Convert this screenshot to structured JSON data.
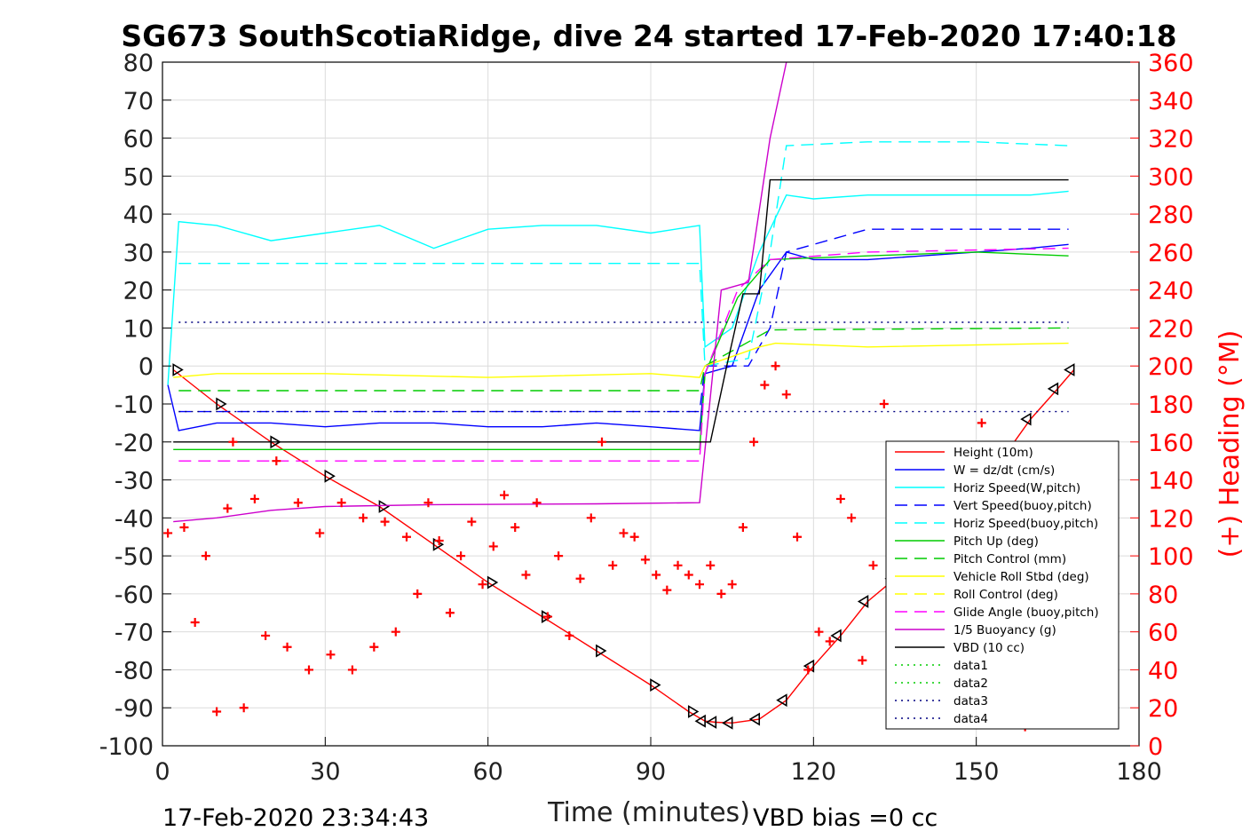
{
  "chart_data": {
    "type": "line",
    "title": "SG673 SouthScotiaRidge, dive 24 started 17-Feb-2020 17:40:18",
    "xlabel": "Time (minutes)",
    "ylabel_right": "(+) Heading (°M)",
    "footer_left": "17-Feb-2020 23:34:43",
    "footer_right": "VBD bias =0 cc",
    "xlim": [
      0,
      180
    ],
    "ylim_left": [
      -100,
      80
    ],
    "ylim_right": [
      0,
      360
    ],
    "x_ticks": [
      0,
      30,
      60,
      90,
      120,
      150,
      180
    ],
    "y_ticks_left": [
      -100,
      -90,
      -80,
      -70,
      -60,
      -50,
      -40,
      -30,
      -20,
      -10,
      0,
      10,
      20,
      30,
      40,
      50,
      60,
      70,
      80
    ],
    "y_ticks_right": [
      0,
      20,
      40,
      60,
      80,
      100,
      120,
      140,
      160,
      180,
      200,
      220,
      240,
      260,
      280,
      300,
      320,
      340,
      360
    ],
    "grid": true,
    "legend_position": "lower-right",
    "legend": [
      {
        "label": "Height (10m)",
        "color": "#ff0000",
        "dash": "solid"
      },
      {
        "label": "W = dz/dt (cm/s)",
        "color": "#0000ff",
        "dash": "solid"
      },
      {
        "label": "Horiz Speed(W,pitch)",
        "color": "#00ffff",
        "dash": "solid"
      },
      {
        "label": "Vert Speed(buoy,pitch)",
        "color": "#0000ff",
        "dash": "dashed"
      },
      {
        "label": "Horiz Speed(buoy,pitch)",
        "color": "#00ffff",
        "dash": "dashed"
      },
      {
        "label": "Pitch Up (deg)",
        "color": "#00cc00",
        "dash": "solid"
      },
      {
        "label": "Pitch Control (mm)",
        "color": "#00cc00",
        "dash": "dashed"
      },
      {
        "label": "Vehicle Roll Stbd (deg)",
        "color": "#ffff00",
        "dash": "solid"
      },
      {
        "label": "Roll Control (deg)",
        "color": "#ffff00",
        "dash": "dashed"
      },
      {
        "label": "Glide Angle (buoy,pitch)",
        "color": "#ff00ff",
        "dash": "dashed"
      },
      {
        "label": "1/5 Buoyancy (g)",
        "color": "#cc00cc",
        "dash": "solid"
      },
      {
        "label": "VBD (10 cc)",
        "color": "#000000",
        "dash": "solid"
      },
      {
        "label": "data1",
        "color": "#00cc00",
        "dash": "dotted"
      },
      {
        "label": "data2",
        "color": "#00cc00",
        "dash": "dotted"
      },
      {
        "label": "data3",
        "color": "#000080",
        "dash": "dotted"
      },
      {
        "label": "data4",
        "color": "#000080",
        "dash": "dotted"
      }
    ],
    "series": [
      {
        "name": "Height (10m)",
        "axis": "left",
        "x": [
          2,
          10,
          20,
          30,
          40,
          50,
          60,
          70,
          80,
          90,
          97,
          100,
          102,
          105,
          110,
          115,
          120,
          125,
          130,
          135,
          140,
          145,
          150,
          155,
          160,
          165,
          168
        ],
        "y": [
          -1,
          -10,
          -20,
          -29,
          -37,
          -47,
          -57,
          -66,
          -75,
          -84,
          -91,
          -93.5,
          -93.8,
          -94,
          -93,
          -88,
          -79,
          -71,
          -62,
          -56,
          -49,
          -41,
          -33,
          -24,
          -14,
          -6,
          -1
        ]
      },
      {
        "name": "Horiz Speed(W,pitch)",
        "axis": "left",
        "x": [
          1,
          3,
          10,
          20,
          30,
          40,
          50,
          60,
          70,
          80,
          90,
          99,
          100,
          105,
          110,
          115,
          120,
          130,
          140,
          150,
          160,
          167
        ],
        "y": [
          -5,
          38,
          37,
          33,
          35,
          37,
          31,
          36,
          37,
          37,
          35,
          37,
          5,
          10,
          30,
          45,
          44,
          45,
          45,
          45,
          45,
          46
        ]
      },
      {
        "name": "W = dz/dt (cm/s)",
        "axis": "left",
        "x": [
          1,
          3,
          10,
          20,
          30,
          40,
          50,
          60,
          70,
          80,
          90,
          99,
          100,
          105,
          110,
          115,
          120,
          130,
          140,
          150,
          160,
          167
        ],
        "y": [
          -5,
          -17,
          -15,
          -15,
          -16,
          -15,
          -15,
          -16,
          -16,
          -15,
          -16,
          -17,
          -2,
          0,
          20,
          30,
          28,
          28,
          29,
          30,
          31,
          32
        ]
      },
      {
        "name": "Vert Speed(buoy,pitch)",
        "axis": "left",
        "x": [
          3,
          99,
          100,
          108,
          112,
          115,
          130,
          150,
          167
        ],
        "y": [
          -12,
          -12,
          0,
          0,
          10,
          30,
          36,
          36,
          36
        ]
      },
      {
        "name": "Horiz Speed(buoy,pitch)",
        "axis": "left",
        "x": [
          3,
          99,
          100,
          108,
          112,
          115,
          130,
          150,
          167
        ],
        "y": [
          27,
          27,
          0,
          2,
          30,
          58,
          59,
          59,
          58
        ]
      },
      {
        "name": "Pitch Up (deg)",
        "axis": "left",
        "x": [
          2,
          10,
          30,
          60,
          90,
          99,
          100,
          106,
          112,
          130,
          150,
          167
        ],
        "y": [
          -22,
          -22,
          -22,
          -22,
          -22,
          -22,
          -2,
          18,
          28,
          29,
          30,
          29
        ]
      },
      {
        "name": "Pitch Control (mm)",
        "axis": "left",
        "x": [
          3,
          99,
          100,
          112,
          167
        ],
        "y": [
          -6.5,
          -6.5,
          0,
          9.5,
          10
        ]
      },
      {
        "name": "Vehicle Roll Stbd (deg)",
        "axis": "left",
        "x": [
          2,
          10,
          30,
          60,
          90,
          99,
          100,
          110,
          113,
          130,
          167
        ],
        "y": [
          -3,
          -2,
          -2,
          -3,
          -2,
          -3,
          0,
          5,
          6,
          5,
          6
        ]
      },
      {
        "name": "Glide Angle (buoy,pitch)",
        "axis": "left",
        "x": [
          3,
          99,
          100,
          106,
          112,
          130,
          167
        ],
        "y": [
          -25,
          -25,
          -2,
          20,
          28,
          30,
          31
        ]
      },
      {
        "name": "1/5 Buoyancy (g)",
        "axis": "left",
        "x": [
          2,
          10,
          20,
          30,
          50,
          80,
          99,
          103,
          108,
          112,
          115
        ],
        "y": [
          -41,
          -40,
          -38,
          -37,
          -36.5,
          -36.3,
          -36,
          20,
          22,
          60,
          80
        ]
      },
      {
        "name": "VBD (10 cc)",
        "axis": "left",
        "x": [
          2,
          101,
          104,
          107,
          110,
          112,
          167
        ],
        "y": [
          -20,
          -20,
          0,
          19,
          19,
          49,
          49
        ]
      },
      {
        "name": "data3",
        "axis": "left",
        "x": [
          3,
          167
        ],
        "y": [
          11.5,
          11.5
        ]
      },
      {
        "name": "data4",
        "axis": "left",
        "x": [
          3,
          167
        ],
        "y": [
          -12,
          -12
        ]
      },
      {
        "name": "(+) Heading (°M)",
        "axis": "right",
        "marker": "+",
        "x": [
          1,
          4,
          6,
          8,
          10,
          12,
          13,
          15,
          17,
          19,
          21,
          23,
          25,
          27,
          29,
          31,
          33,
          35,
          37,
          39,
          41,
          43,
          45,
          47,
          49,
          51,
          53,
          55,
          57,
          59,
          61,
          63,
          65,
          67,
          69,
          71,
          73,
          75,
          77,
          79,
          81,
          83,
          85,
          87,
          89,
          91,
          93,
          95,
          97,
          99,
          101,
          103,
          105,
          107,
          109,
          111,
          113,
          115,
          117,
          119,
          121,
          123,
          125,
          127,
          129,
          131,
          133,
          135,
          137,
          139,
          141,
          143,
          145,
          147,
          149,
          151,
          153,
          155,
          157,
          159,
          161,
          163,
          165,
          167
        ],
        "y": [
          112,
          115,
          65,
          100,
          18,
          125,
          160,
          20,
          130,
          58,
          150,
          52,
          128,
          40,
          112,
          48,
          128,
          40,
          120,
          52,
          118,
          60,
          110,
          80,
          128,
          108,
          70,
          100,
          118,
          85,
          105,
          132,
          115,
          90,
          128,
          68,
          100,
          58,
          88,
          120,
          160,
          95,
          112,
          110,
          98,
          90,
          82,
          95,
          90,
          85,
          95,
          80,
          85,
          115,
          160,
          190,
          200,
          185,
          110,
          40,
          60,
          55,
          130,
          120,
          45,
          95,
          180,
          140,
          55,
          110,
          100,
          65,
          150,
          100,
          60,
          170,
          85,
          70,
          140,
          10,
          90,
          65,
          100,
          120
        ]
      }
    ]
  }
}
